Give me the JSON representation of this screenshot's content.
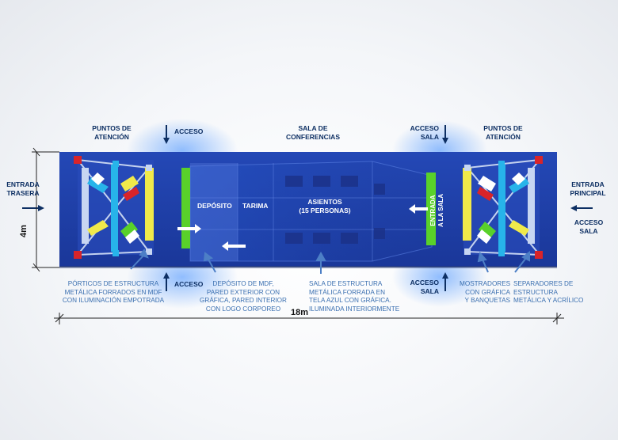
{
  "labels": {
    "puntos_left": [
      "PUNTOS DE",
      "ATENCIÓN"
    ],
    "acceso_top_left": "ACCESO",
    "sala_conferencias": [
      "SALA DE",
      "CONFERENCIAS"
    ],
    "acceso_sala_top": [
      "ACCESO",
      "SALA"
    ],
    "puntos_right": [
      "PUNTOS DE",
      "ATENCIÓN"
    ],
    "entrada_trasera": [
      "ENTRADA",
      "TRASERA"
    ],
    "entrada_principal": [
      "ENTRADA",
      "PRINCIPAL"
    ],
    "acceso_sala_right": [
      "ACCESO",
      "SALA"
    ],
    "acceso_bottom_left": "ACCESO",
    "acceso_sala_bottom": [
      "ACCESO",
      "SALA"
    ]
  },
  "inside": {
    "deposito": "DEPÓSITO",
    "tarima": "TARIMA",
    "asientos": [
      "ASIENTOS",
      "(15 PERSONAS)"
    ],
    "entrada_sala": [
      "ENTRADA",
      "A LA SALA"
    ]
  },
  "notes": {
    "porticos": [
      "PÓRTICOS DE ESTRUCTURA",
      "METÁLICA FORRADOS EN MDF",
      "CON ILUMINACIÓN EMPOTRADA"
    ],
    "deposito_mdf": [
      "DEPÓSITO DE MDF,",
      "PARED EXTERIOR CON",
      "GRÁFICA, PARED INTERIOR",
      "CON LOGO CORPOREO"
    ],
    "sala_estructura": [
      "SALA DE ESTRUCTURA",
      "METÁLICA FORRADA EN",
      "TELA AZUL CON GRÁFICA.",
      "ILUMINADA INTERIORMENTE"
    ],
    "mostradores": [
      "MOSTRADORES",
      "CON GRÁFICA",
      "Y BANQUETAS"
    ],
    "separadores": [
      "SEPARADORES DE",
      "ESTRUCTURA",
      "METÁLICA Y ACRÍLICO"
    ]
  },
  "dimensions": {
    "width": "18m",
    "height": "4m"
  },
  "colors": {
    "floor": "#1f3fa8",
    "navy": "#0d2f63",
    "note": "#3a6fb0",
    "yellow": "#f0e94a",
    "green": "#59d12a",
    "cyan": "#27b4ea",
    "red": "#d8242a"
  }
}
